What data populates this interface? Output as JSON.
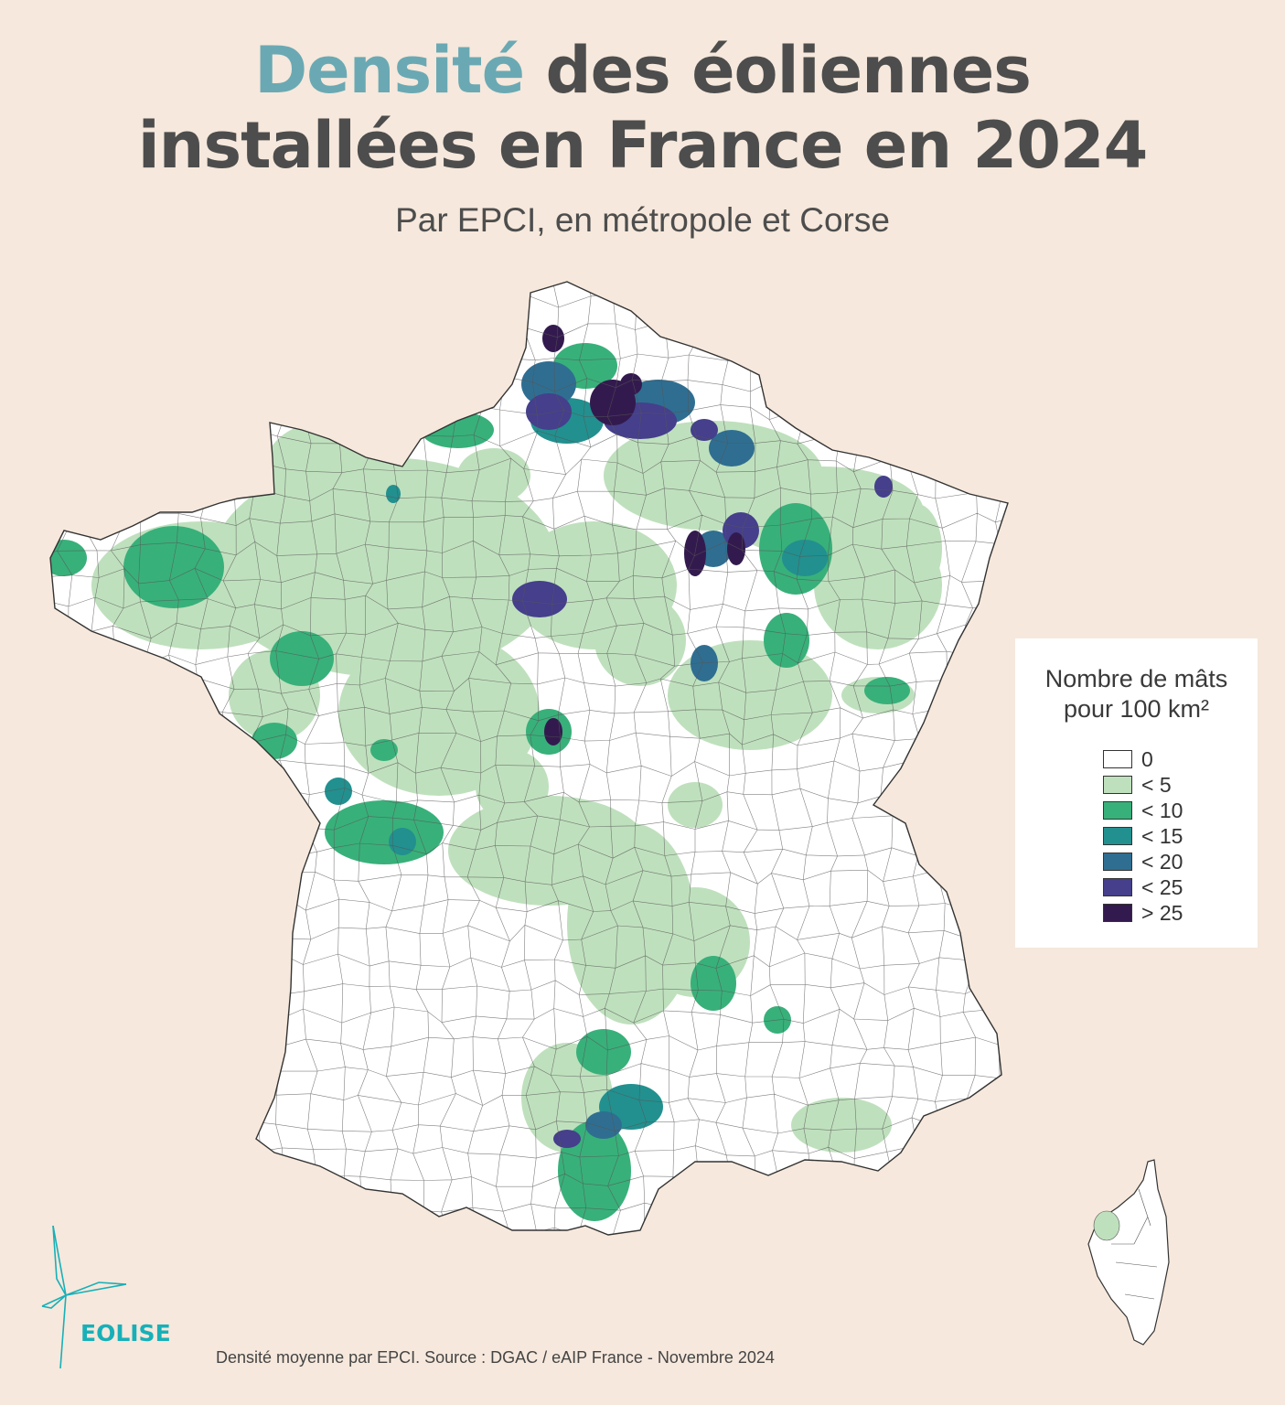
{
  "title": {
    "accent": "Densité",
    "rest": " des éoliennes",
    "line2": "installées en France en 2024"
  },
  "subtitle": "Par EPCI, en métropole et Corse",
  "legend": {
    "title_line1": "Nombre de mâts",
    "title_line2": "pour 100 km²",
    "items": [
      {
        "label": "0",
        "color": "#ffffff"
      },
      {
        "label": "< 5",
        "color": "#bfe0bd"
      },
      {
        "label": "< 10",
        "color": "#38b07a"
      },
      {
        "label": "< 15",
        "color": "#22908f"
      },
      {
        "label": "< 20",
        "color": "#2f6e91"
      },
      {
        "label": "< 25",
        "color": "#453f8c"
      },
      {
        "label": "> 25",
        "color": "#331a4e"
      }
    ]
  },
  "logo_text": "EOLISE",
  "source": "Densité moyenne par EPCI. Source : DGAC / eAIP France - Novembre 2024",
  "colors": {
    "background": "#f6e8dc",
    "title_text": "#4d4d4d",
    "title_accent": "#6aa9b3",
    "logo": "#17b0b8",
    "border": "#333333"
  }
}
